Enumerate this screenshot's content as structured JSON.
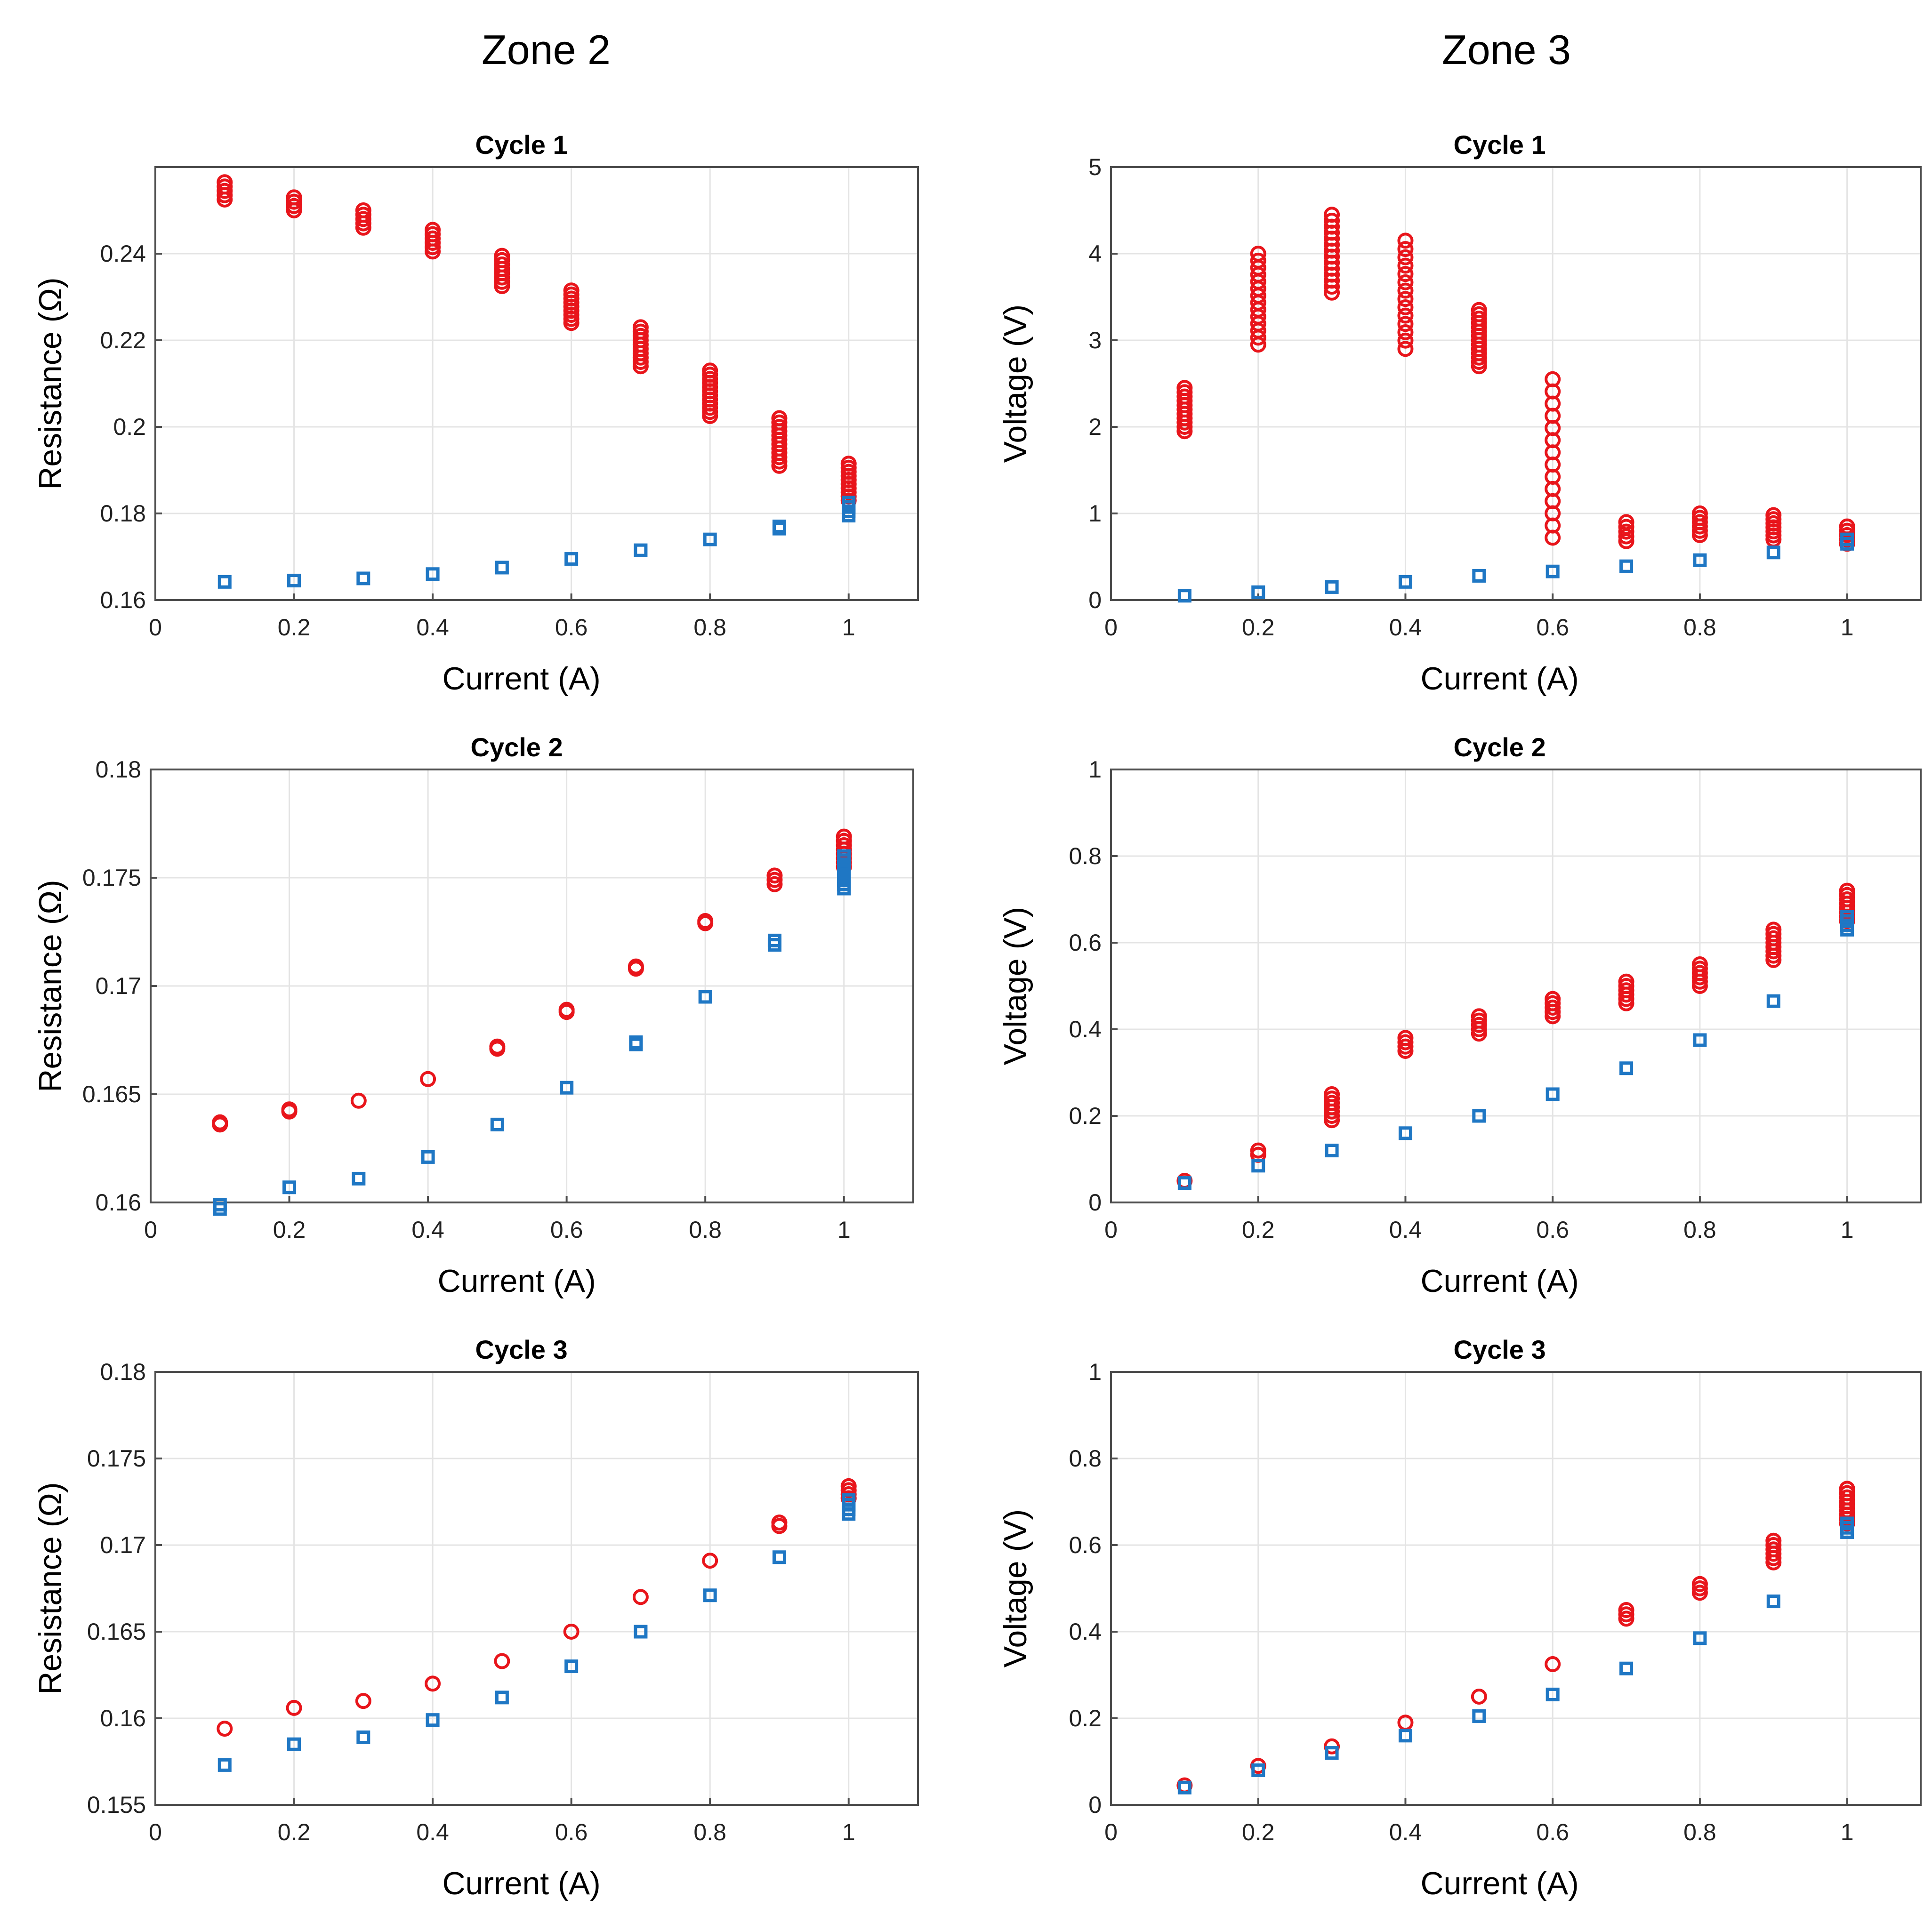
{
  "zones": [
    {
      "title": "Zone 2"
    },
    {
      "title": "Zone 3"
    }
  ],
  "colors": {
    "series_red": "#e8151b",
    "series_blue": "#1f77c4"
  },
  "chart_data": [
    {
      "type": "scatter",
      "zone": "Zone 2",
      "title": "Cycle 1",
      "xlabel": "Current (A)",
      "ylabel": "Resistance (Ω)",
      "xlim": [
        0,
        1.1
      ],
      "ylim": [
        0.16,
        0.26
      ],
      "xticks": [
        0,
        0.2,
        0.4,
        0.6,
        0.8,
        1
      ],
      "xtick_labels": [
        "0",
        "0.2",
        "0.4",
        "0.6",
        "0.8",
        "1"
      ],
      "yticks": [
        0.16,
        0.18,
        0.2,
        0.22,
        0.24
      ],
      "ytick_labels": [
        "0.16",
        "0.18",
        "0.2",
        "0.22",
        "0.24"
      ],
      "x": [
        0.1,
        0.2,
        0.3,
        0.4,
        0.5,
        0.6,
        0.7,
        0.8,
        0.9,
        1.0
      ],
      "series": [
        {
          "name": "red circles",
          "marker": "circle",
          "color": "#e8151b",
          "y_min": [
            0.2525,
            0.25,
            0.246,
            0.2405,
            0.2325,
            0.224,
            0.214,
            0.2025,
            0.191,
            0.183
          ],
          "y_max": [
            0.2565,
            0.253,
            0.25,
            0.2455,
            0.2395,
            0.2315,
            0.223,
            0.213,
            0.202,
            0.1915
          ]
        },
        {
          "name": "blue squares",
          "marker": "square",
          "color": "#1f77c4",
          "y_min": [
            0.1642,
            0.1645,
            0.165,
            0.166,
            0.1675,
            0.1695,
            0.1715,
            0.174,
            0.1765,
            0.1795
          ],
          "y_max": [
            0.1642,
            0.1645,
            0.165,
            0.166,
            0.1675,
            0.1695,
            0.1715,
            0.174,
            0.177,
            0.1825
          ]
        }
      ]
    },
    {
      "type": "scatter",
      "zone": "Zone 3",
      "title": "Cycle 1",
      "xlabel": "Current (A)",
      "ylabel": "Voltage (V)",
      "xlim": [
        0,
        1.1
      ],
      "ylim": [
        0,
        5
      ],
      "xticks": [
        0,
        0.2,
        0.4,
        0.6,
        0.8,
        1
      ],
      "xtick_labels": [
        "0",
        "0.2",
        "0.4",
        "0.6",
        "0.8",
        "1"
      ],
      "yticks": [
        0,
        1,
        2,
        3,
        4,
        5
      ],
      "ytick_labels": [
        "0",
        "1",
        "2",
        "3",
        "4",
        "5"
      ],
      "x": [
        0.1,
        0.2,
        0.3,
        0.4,
        0.5,
        0.6,
        0.7,
        0.8,
        0.9,
        1.0
      ],
      "series": [
        {
          "name": "red circles",
          "marker": "circle",
          "color": "#e8151b",
          "y_min": [
            1.95,
            2.95,
            3.55,
            2.9,
            2.7,
            0.72,
            0.68,
            0.75,
            0.7,
            0.65
          ],
          "y_max": [
            2.45,
            4.0,
            4.45,
            4.15,
            3.35,
            2.55,
            0.9,
            1.0,
            0.98,
            0.85
          ]
        },
        {
          "name": "blue squares",
          "marker": "square",
          "color": "#1f77c4",
          "y_min": [
            0.05,
            0.09,
            0.15,
            0.21,
            0.28,
            0.33,
            0.39,
            0.46,
            0.55,
            0.65
          ],
          "y_max": [
            0.05,
            0.09,
            0.15,
            0.21,
            0.28,
            0.33,
            0.39,
            0.46,
            0.56,
            0.7
          ]
        }
      ]
    },
    {
      "type": "scatter",
      "zone": "Zone 2",
      "title": "Cycle 2",
      "xlabel": "Current (A)",
      "ylabel": "Resistance (Ω)",
      "xlim": [
        0,
        1.1
      ],
      "ylim": [
        0.16,
        0.18
      ],
      "xticks": [
        0,
        0.2,
        0.4,
        0.6,
        0.8,
        1
      ],
      "xtick_labels": [
        "0",
        "0.2",
        "0.4",
        "0.6",
        "0.8",
        "1"
      ],
      "yticks": [
        0.16,
        0.165,
        0.17,
        0.175,
        0.18
      ],
      "ytick_labels": [
        "0.16",
        "0.165",
        "0.17",
        "0.175",
        "0.18"
      ],
      "x": [
        0.1,
        0.2,
        0.3,
        0.4,
        0.5,
        0.6,
        0.7,
        0.8,
        0.9,
        1.0
      ],
      "series": [
        {
          "name": "red circles",
          "marker": "circle",
          "color": "#e8151b",
          "y_min": [
            0.1636,
            0.1642,
            0.1647,
            0.1657,
            0.1671,
            0.1688,
            0.1708,
            0.1729,
            0.1747,
            0.1755
          ],
          "y_max": [
            0.1637,
            0.1643,
            0.1647,
            0.1657,
            0.1672,
            0.1689,
            0.1709,
            0.173,
            0.1751,
            0.1769
          ]
        },
        {
          "name": "blue squares",
          "marker": "square",
          "color": "#1f77c4",
          "y_min": [
            0.1597,
            0.1607,
            0.1611,
            0.1621,
            0.1636,
            0.1653,
            0.1673,
            0.1695,
            0.1719,
            0.1745
          ],
          "y_max": [
            0.1599,
            0.1607,
            0.1611,
            0.1621,
            0.1636,
            0.1653,
            0.1674,
            0.1695,
            0.1721,
            0.176
          ]
        }
      ]
    },
    {
      "type": "scatter",
      "zone": "Zone 3",
      "title": "Cycle 2",
      "xlabel": "Current (A)",
      "ylabel": "Voltage (V)",
      "xlim": [
        0,
        1.1
      ],
      "ylim": [
        0,
        1
      ],
      "xticks": [
        0,
        0.2,
        0.4,
        0.6,
        0.8,
        1
      ],
      "xtick_labels": [
        "0",
        "0.2",
        "0.4",
        "0.6",
        "0.8",
        "1"
      ],
      "yticks": [
        0,
        0.2,
        0.4,
        0.6,
        0.8,
        1
      ],
      "ytick_labels": [
        "0",
        "0.2",
        "0.4",
        "0.6",
        "0.8",
        "1"
      ],
      "x": [
        0.1,
        0.2,
        0.3,
        0.4,
        0.5,
        0.6,
        0.7,
        0.8,
        0.9,
        1.0
      ],
      "series": [
        {
          "name": "red circles",
          "marker": "circle",
          "color": "#e8151b",
          "y_min": [
            0.05,
            0.11,
            0.19,
            0.35,
            0.39,
            0.43,
            0.46,
            0.5,
            0.56,
            0.65
          ],
          "y_max": [
            0.05,
            0.12,
            0.25,
            0.38,
            0.43,
            0.47,
            0.51,
            0.55,
            0.63,
            0.72
          ]
        },
        {
          "name": "blue squares",
          "marker": "square",
          "color": "#1f77c4",
          "y_min": [
            0.045,
            0.085,
            0.12,
            0.16,
            0.2,
            0.25,
            0.31,
            0.375,
            0.465,
            0.63
          ],
          "y_max": [
            0.045,
            0.085,
            0.12,
            0.16,
            0.2,
            0.25,
            0.31,
            0.375,
            0.465,
            0.66
          ]
        }
      ]
    },
    {
      "type": "scatter",
      "zone": "Zone 2",
      "title": "Cycle 3",
      "xlabel": "Current (A)",
      "ylabel": "Resistance (Ω)",
      "xlim": [
        0,
        1.1
      ],
      "ylim": [
        0.155,
        0.18
      ],
      "xticks": [
        0,
        0.2,
        0.4,
        0.6,
        0.8,
        1
      ],
      "xtick_labels": [
        "0",
        "0.2",
        "0.4",
        "0.6",
        "0.8",
        "1"
      ],
      "yticks": [
        0.155,
        0.16,
        0.165,
        0.17,
        0.175,
        0.18
      ],
      "ytick_labels": [
        "0.155",
        "0.16",
        "0.165",
        "0.17",
        "0.175",
        "0.18"
      ],
      "x": [
        0.1,
        0.2,
        0.3,
        0.4,
        0.5,
        0.6,
        0.7,
        0.8,
        0.9,
        1.0
      ],
      "series": [
        {
          "name": "red circles",
          "marker": "circle",
          "color": "#e8151b",
          "y_min": [
            0.1594,
            0.1606,
            0.161,
            0.162,
            0.1633,
            0.165,
            0.167,
            0.1691,
            0.1711,
            0.1727
          ],
          "y_max": [
            0.1595,
            0.1606,
            0.161,
            0.162,
            0.1634,
            0.1651,
            0.167,
            0.1692,
            0.1713,
            0.1734
          ]
        },
        {
          "name": "blue squares",
          "marker": "square",
          "color": "#1f77c4",
          "y_min": [
            0.1573,
            0.1585,
            0.1589,
            0.1599,
            0.1612,
            0.163,
            0.165,
            0.1671,
            0.1693,
            0.1718
          ],
          "y_max": [
            0.1574,
            0.1586,
            0.1589,
            0.1599,
            0.1612,
            0.163,
            0.165,
            0.1671,
            0.1693,
            0.1726
          ]
        }
      ]
    },
    {
      "type": "scatter",
      "zone": "Zone 3",
      "title": "Cycle 3",
      "xlabel": "Current (A)",
      "ylabel": "Voltage (V)",
      "xlim": [
        0,
        1.1
      ],
      "ylim": [
        0,
        1
      ],
      "xticks": [
        0,
        0.2,
        0.4,
        0.6,
        0.8,
        1
      ],
      "xtick_labels": [
        "0",
        "0.2",
        "0.4",
        "0.6",
        "0.8",
        "1"
      ],
      "yticks": [
        0,
        0.2,
        0.4,
        0.6,
        0.8,
        1
      ],
      "ytick_labels": [
        "0",
        "0.2",
        "0.4",
        "0.6",
        "0.8",
        "1"
      ],
      "x": [
        0.1,
        0.2,
        0.3,
        0.4,
        0.5,
        0.6,
        0.7,
        0.8,
        0.9,
        1.0
      ],
      "series": [
        {
          "name": "red circles",
          "marker": "circle",
          "color": "#e8151b",
          "y_min": [
            0.045,
            0.09,
            0.135,
            0.19,
            0.25,
            0.325,
            0.43,
            0.49,
            0.56,
            0.65
          ],
          "y_max": [
            0.045,
            0.09,
            0.135,
            0.19,
            0.25,
            0.325,
            0.45,
            0.51,
            0.61,
            0.73
          ]
        },
        {
          "name": "blue squares",
          "marker": "square",
          "color": "#1f77c4",
          "y_min": [
            0.04,
            0.08,
            0.12,
            0.16,
            0.205,
            0.255,
            0.315,
            0.385,
            0.47,
            0.63
          ],
          "y_max": [
            0.04,
            0.08,
            0.12,
            0.16,
            0.205,
            0.255,
            0.315,
            0.385,
            0.47,
            0.65
          ]
        }
      ]
    }
  ]
}
